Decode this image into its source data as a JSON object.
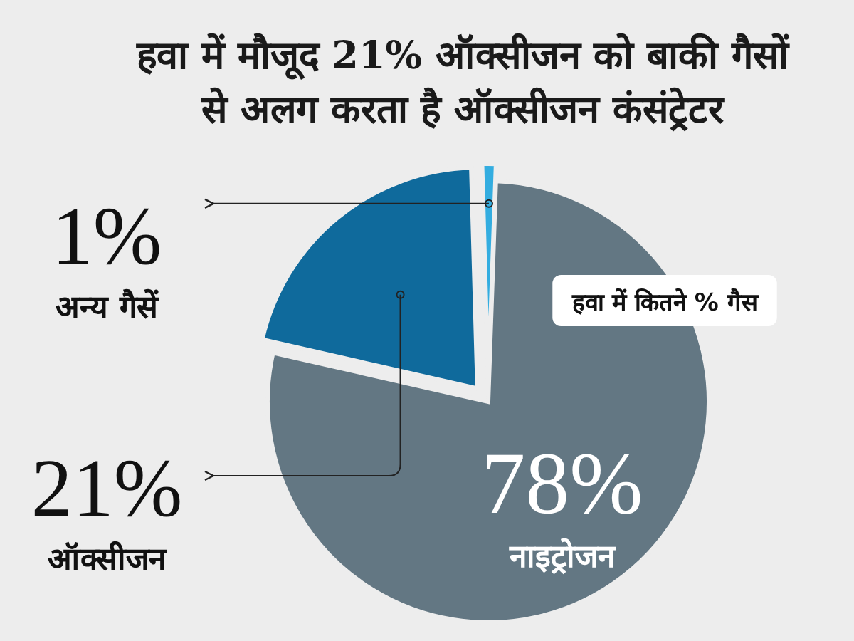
{
  "chart_data": {
    "type": "pie",
    "title": "हवा में मौजूद 21% ऑक्सीजन को बाकी गैसों से अलग करता है ऑक्सीजन कंसंट्रेटर",
    "subtitle": "हवा में कितने % गैस",
    "categories": [
      "नाइट्रोजन",
      "ऑक्सीजन",
      "अन्य गैसें"
    ],
    "values": [
      78,
      21,
      1
    ],
    "value_labels": [
      "78%",
      "21%",
      "1%"
    ],
    "colors": [
      "#637783",
      "#0f6a9c",
      "#33ade0"
    ]
  }
}
